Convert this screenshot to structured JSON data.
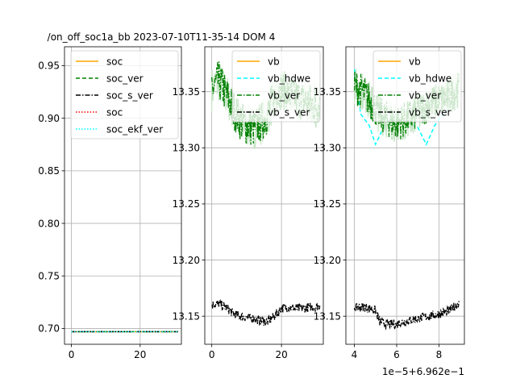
{
  "figure": {
    "title": "/on_off_soc1a_bb   2023-07-10T11-35-14 DOM 4"
  },
  "chart_data": [
    {
      "type": "line",
      "id": "panel-soc",
      "xlim": [
        -2,
        32
      ],
      "ylim": [
        0.685,
        0.968
      ],
      "xticks": [
        0,
        20
      ],
      "yticks": [
        0.7,
        0.75,
        0.8,
        0.85,
        0.9,
        0.95
      ],
      "ytick_labels": [
        "0.70",
        "0.75",
        "0.80",
        "0.85",
        "0.90",
        "0.95"
      ],
      "grid": true,
      "legend_position": "top-right",
      "series": [
        {
          "name": "soc",
          "color": "#ffa500",
          "dash": "solid",
          "x": [
            0,
            31
          ],
          "y": [
            0.697,
            0.697
          ]
        },
        {
          "name": "soc_ver",
          "color": "#008000",
          "dash": "dashed",
          "x": [
            0,
            31
          ],
          "y": [
            0.697,
            0.697
          ]
        },
        {
          "name": "soc_s_ver",
          "color": "#000000",
          "dash": "dashdot",
          "x": [
            0,
            31
          ],
          "y": [
            0.697,
            0.697
          ]
        },
        {
          "name": "soc",
          "color": "#ff0000",
          "dash": "dotted",
          "x": [
            0,
            31
          ],
          "y": [
            0.697,
            0.697
          ]
        },
        {
          "name": "soc_ekf_ver",
          "color": "#00ffff",
          "dash": "dotted",
          "x": [
            0,
            31
          ],
          "y": [
            0.697,
            0.697
          ]
        }
      ]
    },
    {
      "type": "line",
      "id": "panel-vb-time",
      "xlim": [
        -2,
        32
      ],
      "ylim": [
        13.125,
        13.39
      ],
      "xticks": [
        0,
        20
      ],
      "yticks": [
        13.15,
        13.2,
        13.25,
        13.3,
        13.35
      ],
      "ytick_labels": [
        "13.15",
        "13.20",
        "13.25",
        "13.30",
        "13.35"
      ],
      "grid": true,
      "legend_position": "top-right",
      "series": [
        {
          "name": "vb",
          "color": "#ffa500",
          "dash": "solid",
          "style": "hidden",
          "x": [],
          "y": []
        },
        {
          "name": "vb_hdwe",
          "color": "#00ffff",
          "dash": "dashed",
          "style": "hidden",
          "x": [],
          "y": []
        },
        {
          "name": "vb_ver",
          "color": "#008000",
          "dash": "dashdot",
          "style": "noisy",
          "x": [
            0,
            2,
            4,
            6,
            8,
            10,
            12,
            14,
            16,
            18,
            20,
            22,
            24,
            26,
            28,
            30,
            31
          ],
          "y": [
            13.352,
            13.36,
            13.348,
            13.336,
            13.325,
            13.32,
            13.318,
            13.322,
            13.33,
            13.345,
            13.352,
            13.348,
            13.345,
            13.342,
            13.34,
            13.338,
            13.34
          ],
          "spread": 0.018,
          "fill_color": "#c8e6c8"
        },
        {
          "name": "vb_s_ver",
          "color": "#000000",
          "dash": "dashdot",
          "style": "noisy",
          "x": [
            0,
            2,
            4,
            6,
            8,
            10,
            12,
            14,
            16,
            18,
            20,
            22,
            24,
            26,
            28,
            30,
            31
          ],
          "y": [
            13.16,
            13.161,
            13.158,
            13.153,
            13.15,
            13.149,
            13.148,
            13.146,
            13.145,
            13.15,
            13.157,
            13.158,
            13.157,
            13.157,
            13.158,
            13.158,
            13.16
          ],
          "spread": 0.004
        }
      ]
    },
    {
      "type": "line",
      "id": "panel-vb-soc",
      "xlim": [
        3.6,
        9.2
      ],
      "ylim": [
        13.125,
        13.39
      ],
      "xticks": [
        4,
        6,
        8
      ],
      "x_offset_label": "1e−5+6.962e−1",
      "yticks": [
        13.15,
        13.2,
        13.25,
        13.3,
        13.35
      ],
      "ytick_labels": [
        "13.15",
        "13.20",
        "13.25",
        "13.30",
        "13.35"
      ],
      "grid": true,
      "legend_position": "top-right",
      "series": [
        {
          "name": "vb",
          "color": "#ffa500",
          "dash": "solid",
          "style": "hidden",
          "x": [],
          "y": []
        },
        {
          "name": "vb_hdwe",
          "color": "#00ffff",
          "dash": "dashed",
          "style": "line",
          "x": [
            4.0,
            4.3,
            4.7,
            5.0,
            5.3,
            5.6,
            6.0,
            6.4,
            7.0,
            7.4,
            7.8,
            8.2,
            8.6,
            8.9
          ],
          "y": [
            13.37,
            13.33,
            13.32,
            13.303,
            13.315,
            13.325,
            13.33,
            13.325,
            13.318,
            13.303,
            13.32,
            13.33,
            13.34,
            13.345
          ]
        },
        {
          "name": "vb_ver",
          "color": "#008000",
          "dash": "dashdot",
          "style": "noisy",
          "x": [
            4.0,
            4.4,
            4.8,
            5.2,
            5.6,
            6.0,
            6.4,
            6.8,
            7.2,
            7.6,
            8.0,
            8.4,
            8.8,
            8.95
          ],
          "y": [
            13.355,
            13.35,
            13.34,
            13.33,
            13.325,
            13.322,
            13.325,
            13.33,
            13.335,
            13.34,
            13.342,
            13.345,
            13.35,
            13.352
          ],
          "spread": 0.016,
          "fill_color": "#c8e6c8"
        },
        {
          "name": "vb_s_ver",
          "color": "#000000",
          "dash": "dashdot",
          "style": "noisy",
          "x": [
            4.0,
            4.5,
            5.0,
            5.2,
            5.5,
            6.0,
            6.5,
            7.0,
            7.5,
            8.0,
            8.5,
            8.8,
            8.95
          ],
          "y": [
            13.158,
            13.158,
            13.155,
            13.145,
            13.143,
            13.143,
            13.146,
            13.148,
            13.15,
            13.152,
            13.155,
            13.16,
            13.162
          ],
          "spread": 0.004
        }
      ]
    }
  ]
}
